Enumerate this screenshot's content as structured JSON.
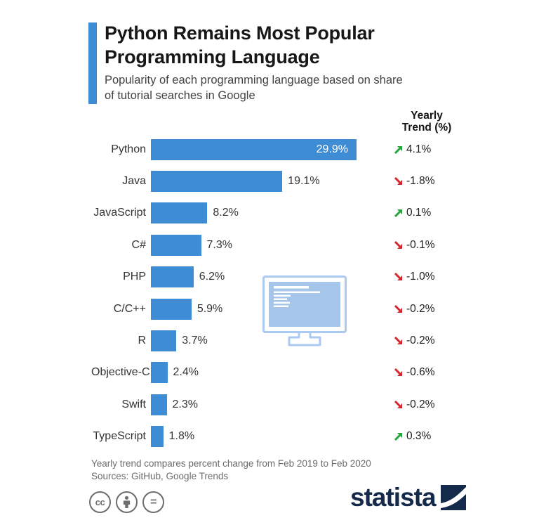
{
  "header": {
    "title_lines": [
      "Python Remains Most Popular",
      "Programming Language"
    ],
    "subtitle_lines": [
      "Popularity of each programming language based on share",
      "of tutorial searches in Google"
    ]
  },
  "trend_header": {
    "line1": "Yearly",
    "line2": "Trend (%)"
  },
  "chart_data": {
    "type": "bar",
    "orientation": "horizontal",
    "title": "Python Remains Most Popular Programming Language",
    "subtitle": "Popularity of each programming language based on share of tutorial searches in Google",
    "unit": "%",
    "xlim": [
      0,
      30.5
    ],
    "grid": false,
    "legend": null,
    "categories": [
      "Python",
      "Java",
      "JavaScript",
      "C#",
      "PHP",
      "C/C++",
      "R",
      "Objective-C",
      "Swift",
      "TypeScript"
    ],
    "values": [
      29.9,
      19.1,
      8.2,
      7.3,
      6.2,
      5.9,
      3.7,
      2.4,
      2.3,
      1.8
    ],
    "trend_column_header": "Yearly Trend (%)",
    "rows": [
      {
        "label": "Python",
        "value": 29.9,
        "value_label": "29.9%",
        "trend_value": 4.1,
        "trend_label": "4.1%",
        "trend_direction": "up",
        "value_inside": true
      },
      {
        "label": "Java",
        "value": 19.1,
        "value_label": "19.1%",
        "trend_value": -1.8,
        "trend_label": "-1.8%",
        "trend_direction": "down",
        "value_inside": false
      },
      {
        "label": "JavaScript",
        "value": 8.2,
        "value_label": "8.2%",
        "trend_value": 0.1,
        "trend_label": "0.1%",
        "trend_direction": "up",
        "value_inside": false
      },
      {
        "label": "C#",
        "value": 7.3,
        "value_label": "7.3%",
        "trend_value": -0.1,
        "trend_label": "-0.1%",
        "trend_direction": "down",
        "value_inside": false
      },
      {
        "label": "PHP",
        "value": 6.2,
        "value_label": "6.2%",
        "trend_value": -1.0,
        "trend_label": "-1.0%",
        "trend_direction": "down",
        "value_inside": false
      },
      {
        "label": "C/C++",
        "value": 5.9,
        "value_label": "5.9%",
        "trend_value": -0.2,
        "trend_label": "-0.2%",
        "trend_direction": "down",
        "value_inside": false
      },
      {
        "label": "R",
        "value": 3.7,
        "value_label": "3.7%",
        "trend_value": -0.2,
        "trend_label": "-0.2%",
        "trend_direction": "down",
        "value_inside": false
      },
      {
        "label": "Objective-C",
        "value": 2.4,
        "value_label": "2.4%",
        "trend_value": -0.6,
        "trend_label": "-0.6%",
        "trend_direction": "down",
        "value_inside": false
      },
      {
        "label": "Swift",
        "value": 2.3,
        "value_label": "2.3%",
        "trend_value": -0.2,
        "trend_label": "-0.2%",
        "trend_direction": "down",
        "value_inside": false
      },
      {
        "label": "TypeScript",
        "value": 1.8,
        "value_label": "1.8%",
        "trend_value": 0.3,
        "trend_label": "0.3%",
        "trend_direction": "up",
        "value_inside": false
      }
    ]
  },
  "footer": {
    "note": "Yearly trend compares percent change from Feb 2019 to Feb 2020",
    "sources": "Sources: GitHub, Google Trends"
  },
  "license_icons": [
    {
      "name": "creative-commons-icon",
      "glyph": "cc"
    },
    {
      "name": "attribution-icon",
      "glyph": "person"
    },
    {
      "name": "no-derivatives-icon",
      "glyph": "="
    }
  ],
  "branding": {
    "logo_text": "statista"
  },
  "colors": {
    "bar": "#3e8cd4",
    "accent": "#3e8cd4",
    "trend_up": "#27a437",
    "trend_down": "#d6262b",
    "logo_navy": "#15294b",
    "monitor_outline": "#abc9f1",
    "monitor_screen": "#a5c5ea"
  }
}
